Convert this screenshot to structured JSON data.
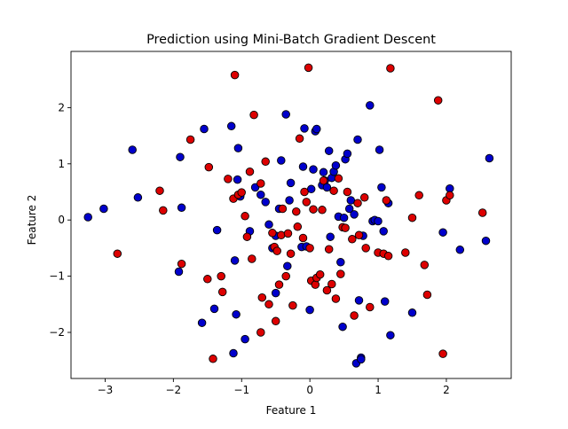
{
  "chart_data": {
    "type": "scatter",
    "title": "Prediction using Mini-Batch Gradient Descent",
    "xlabel": "Feature 1",
    "ylabel": "Feature 2",
    "xlim": [
      -3.5,
      2.95
    ],
    "ylim": [
      -2.82,
      3.0
    ],
    "xticks": [
      -3,
      -2,
      -1,
      0,
      1,
      2
    ],
    "yticks": [
      -2,
      -1,
      0,
      1,
      2
    ],
    "grid": false,
    "legend": "none",
    "colors": {
      "class_0": "#0000cc",
      "class_1": "#dd0000",
      "edge": "#000000"
    },
    "series": [
      {
        "class": 0,
        "color": "#0000cc",
        "x": [
          -3.25,
          -3.02,
          -2.6,
          -2.52,
          -1.9,
          -1.88,
          -1.92,
          -1.55,
          -1.58,
          -1.4,
          -1.36,
          -1.15,
          -1.12,
          -1.1,
          -1.08,
          -1.06,
          -1.05,
          -1.02,
          -0.95,
          -0.88,
          -0.8,
          -0.72,
          -0.65,
          -0.6,
          -0.55,
          -0.5,
          -0.5,
          -0.45,
          -0.42,
          -0.35,
          -0.33,
          -0.3,
          -0.28,
          -0.12,
          -0.1,
          -0.08,
          -0.05,
          0.0,
          0.02,
          0.05,
          0.08,
          0.1,
          0.18,
          0.2,
          0.22,
          0.25,
          0.28,
          0.3,
          0.32,
          0.35,
          0.38,
          0.42,
          0.45,
          0.48,
          0.5,
          0.52,
          0.55,
          0.58,
          0.6,
          0.65,
          0.68,
          0.7,
          0.72,
          0.75,
          0.75,
          0.78,
          0.88,
          0.92,
          0.95,
          1.0,
          1.02,
          1.05,
          1.08,
          1.1,
          1.15,
          1.18,
          1.5,
          1.95,
          2.05,
          2.2,
          2.58,
          2.63
        ],
        "y": [
          0.05,
          0.2,
          1.25,
          0.4,
          1.12,
          0.22,
          -0.92,
          1.62,
          -1.83,
          -1.58,
          -0.18,
          1.67,
          -2.37,
          -0.72,
          -1.68,
          0.72,
          1.28,
          0.42,
          -2.12,
          -0.2,
          0.58,
          0.45,
          0.32,
          -0.08,
          -0.5,
          -0.28,
          -1.3,
          0.2,
          1.06,
          1.88,
          -0.82,
          0.35,
          0.66,
          -0.48,
          0.95,
          1.63,
          -0.47,
          -1.6,
          0.55,
          0.9,
          1.58,
          1.62,
          0.62,
          0.85,
          0.7,
          0.58,
          1.23,
          -0.3,
          0.75,
          0.86,
          0.97,
          0.06,
          -0.75,
          -1.9,
          0.04,
          1.08,
          1.18,
          0.2,
          0.35,
          0.1,
          -2.55,
          1.43,
          -1.43,
          -2.45,
          -2.48,
          -0.28,
          2.04,
          -0.02,
          0.0,
          -0.02,
          1.25,
          0.58,
          -0.2,
          -1.45,
          0.3,
          -2.05,
          -1.65,
          -0.22,
          0.56,
          -0.53,
          -0.37,
          1.1
        ]
      },
      {
        "class": 1,
        "color": "#dd0000",
        "x": [
          -2.82,
          -2.2,
          -2.15,
          -1.88,
          -1.75,
          -1.5,
          -1.48,
          -1.42,
          -1.3,
          -1.28,
          -1.2,
          -1.12,
          -1.1,
          -1.05,
          -1.0,
          -0.95,
          -0.92,
          -0.88,
          -0.85,
          -0.82,
          -0.72,
          -0.72,
          -0.7,
          -0.65,
          -0.6,
          -0.55,
          -0.52,
          -0.5,
          -0.48,
          -0.45,
          -0.42,
          -0.4,
          -0.35,
          -0.32,
          -0.28,
          -0.25,
          -0.2,
          -0.18,
          -0.15,
          -0.1,
          -0.08,
          -0.05,
          -0.02,
          0.0,
          0.02,
          0.05,
          0.08,
          0.1,
          0.15,
          0.18,
          0.2,
          0.25,
          0.28,
          0.32,
          0.35,
          0.38,
          0.42,
          0.45,
          0.48,
          0.52,
          0.55,
          0.62,
          0.65,
          0.7,
          0.72,
          0.8,
          0.82,
          0.88,
          1.0,
          1.08,
          1.12,
          1.15,
          1.18,
          1.4,
          1.5,
          1.6,
          1.68,
          1.72,
          1.88,
          1.95,
          2.0,
          2.05,
          2.53
        ],
        "y": [
          -0.6,
          0.52,
          0.17,
          -0.78,
          1.43,
          -1.05,
          0.94,
          -2.47,
          -1.0,
          -1.28,
          0.73,
          0.38,
          2.58,
          0.45,
          0.49,
          0.07,
          -0.3,
          0.86,
          -0.69,
          1.87,
          0.65,
          -2.0,
          -1.38,
          1.04,
          -1.5,
          -0.23,
          -0.48,
          -1.8,
          -0.55,
          -1.15,
          -0.27,
          0.2,
          -1.0,
          -0.24,
          -0.6,
          -1.52,
          0.15,
          -0.12,
          1.45,
          -0.32,
          0.5,
          0.32,
          2.71,
          -0.5,
          -1.08,
          0.19,
          -1.15,
          -1.03,
          -0.97,
          0.18,
          0.7,
          -1.25,
          -0.52,
          -1.14,
          0.52,
          -1.4,
          0.74,
          -0.96,
          -0.13,
          -0.14,
          0.5,
          -0.34,
          -1.7,
          0.3,
          -0.27,
          0.4,
          -0.5,
          -1.55,
          -0.58,
          -0.6,
          0.35,
          -0.64,
          2.7,
          -0.58,
          0.04,
          0.44,
          -0.8,
          -1.33,
          2.13,
          -2.38,
          0.35,
          0.44,
          0.13
        ]
      }
    ]
  }
}
